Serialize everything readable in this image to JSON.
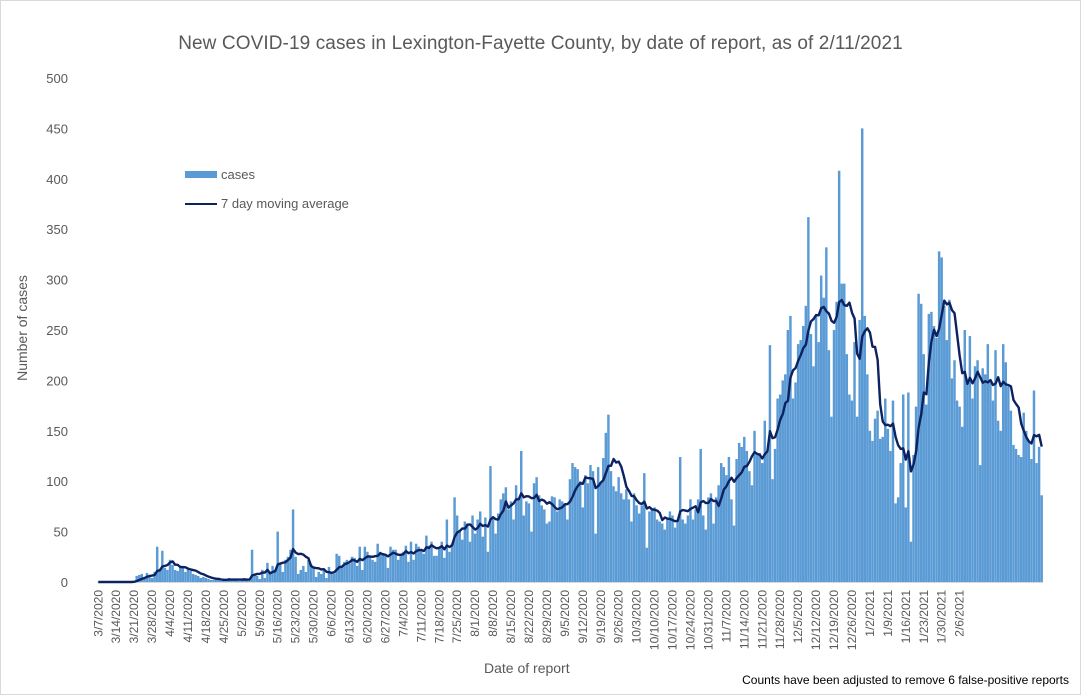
{
  "chart_data": {
    "type": "bar",
    "title": "New COVID-19 cases in Lexington-Fayette County, by date of report, as of 2/11/2021",
    "xlabel": "Date of report",
    "ylabel": "Number of cases",
    "ylim": [
      0,
      500
    ],
    "yticks": [
      0,
      50,
      100,
      150,
      200,
      250,
      300,
      350,
      400,
      450,
      500
    ],
    "grid": false,
    "legend_position": "top-left",
    "start_date": "3/7/2020",
    "end_date": "2/11/2021",
    "xtick_labels": [
      "3/7/2020",
      "3/14/2020",
      "3/21/2020",
      "3/28/2020",
      "4/4/2020",
      "4/11/2020",
      "4/18/2020",
      "4/25/2020",
      "5/2/2020",
      "5/9/2020",
      "5/16/2020",
      "5/23/2020",
      "5/30/2020",
      "6/6/2020",
      "6/13/2020",
      "6/20/2020",
      "6/27/2020",
      "7/4/2020",
      "7/11/2020",
      "7/18/2020",
      "7/25/2020",
      "8/1/2020",
      "8/8/2020",
      "8/15/2020",
      "8/22/2020",
      "8/29/2020",
      "9/5/2020",
      "9/12/2020",
      "9/19/2020",
      "9/26/2020",
      "10/3/2020",
      "10/10/2020",
      "10/17/2020",
      "10/24/2020",
      "10/31/2020",
      "11/7/2020",
      "11/14/2020",
      "11/21/2020",
      "11/28/2020",
      "12/5/2020",
      "12/12/2020",
      "12/19/2020",
      "12/26/2020",
      "1/2/2021",
      "1/9/2021",
      "1/16/2021",
      "1/23/2021",
      "1/30/2021",
      "2/6/2021"
    ],
    "series": [
      {
        "name": "cases",
        "kind": "bar",
        "color": "#5b9bd5",
        "values": [
          0,
          0,
          0,
          0,
          0,
          0,
          0,
          0,
          0,
          0,
          0,
          0,
          0,
          0,
          1,
          6,
          7,
          8,
          5,
          9,
          6,
          4,
          10,
          35,
          12,
          31,
          14,
          12,
          22,
          17,
          12,
          11,
          16,
          14,
          10,
          13,
          11,
          8,
          7,
          6,
          4,
          5,
          4,
          3,
          2,
          2,
          3,
          2,
          1,
          2,
          3,
          4,
          2,
          3,
          2,
          1,
          2,
          4,
          3,
          1,
          32,
          8,
          6,
          3,
          12,
          4,
          19,
          9,
          16,
          12,
          50,
          18,
          10,
          22,
          25,
          32,
          72,
          25,
          8,
          12,
          16,
          10,
          22,
          18,
          14,
          5,
          10,
          8,
          12,
          4,
          15,
          10,
          8,
          28,
          26,
          15,
          20,
          22,
          18,
          25,
          24,
          16,
          35,
          12,
          35,
          30,
          25,
          22,
          20,
          38,
          30,
          28,
          26,
          14,
          35,
          32,
          32,
          22,
          28,
          30,
          36,
          20,
          40,
          22,
          38,
          35,
          32,
          28,
          46,
          36,
          40,
          26,
          26,
          35,
          40,
          24,
          62,
          30,
          38,
          84,
          66,
          50,
          42,
          60,
          58,
          40,
          66,
          48,
          62,
          70,
          45,
          64,
          30,
          115,
          64,
          48,
          68,
          82,
          88,
          94,
          72,
          80,
          62,
          96,
          82,
          130,
          66,
          80,
          78,
          50,
          98,
          104,
          86,
          76,
          72,
          58,
          60,
          85,
          84,
          70,
          82,
          80,
          78,
          62,
          102,
          118,
          114,
          112,
          100,
          74,
          106,
          98,
          116,
          110,
          48,
          114,
          98,
          123,
          148,
          166,
          110,
          95,
          90,
          104,
          88,
          82,
          92,
          82,
          60,
          88,
          76,
          68,
          76,
          108,
          34,
          70,
          72,
          74,
          62,
          60,
          58,
          52,
          62,
          70,
          66,
          54,
          62,
          124,
          62,
          58,
          66,
          82,
          62,
          72,
          82,
          132,
          66,
          52,
          84,
          88,
          58,
          84,
          96,
          118,
          114,
          106,
          124,
          82,
          56,
          122,
          138,
          134,
          144,
          130,
          110,
          96,
          150,
          126,
          128,
          118,
          160,
          130,
          235,
          102,
          132,
          182,
          186,
          200,
          206,
          250,
          264,
          182,
          198,
          236,
          240,
          254,
          274,
          362,
          246,
          214,
          264,
          238,
          304,
          282,
          332,
          230,
          164,
          250,
          278,
          408,
          296,
          296,
          226,
          186,
          180,
          238,
          164,
          260,
          450,
          264,
          206,
          150,
          140,
          162,
          170,
          142,
          144,
          182,
          152,
          130,
          180,
          78,
          84,
          118,
          186,
          74,
          188,
          40,
          126,
          174,
          286,
          276,
          226,
          176,
          266,
          268,
          254,
          242,
          328,
          322,
          274,
          240,
          280,
          202,
          220,
          180,
          174,
          154,
          250,
          196,
          244,
          182,
          214,
          220,
          116,
          212,
          206,
          236,
          198,
          180,
          230,
          160,
          150,
          236,
          218,
          194,
          170,
          136,
          132,
          126,
          124,
          168,
          150,
          140,
          122,
          190,
          118,
          134,
          86
        ],
        "moving_average_7day": true
      },
      {
        "name": "7 day moving average",
        "kind": "line",
        "color": "#0d2260",
        "derived_from": "cases"
      }
    ]
  },
  "footnote": "Counts have been adjusted to remove 6 false-positive reports",
  "legend": {
    "cases_label": "cases",
    "avg_label": "7 day moving average"
  }
}
